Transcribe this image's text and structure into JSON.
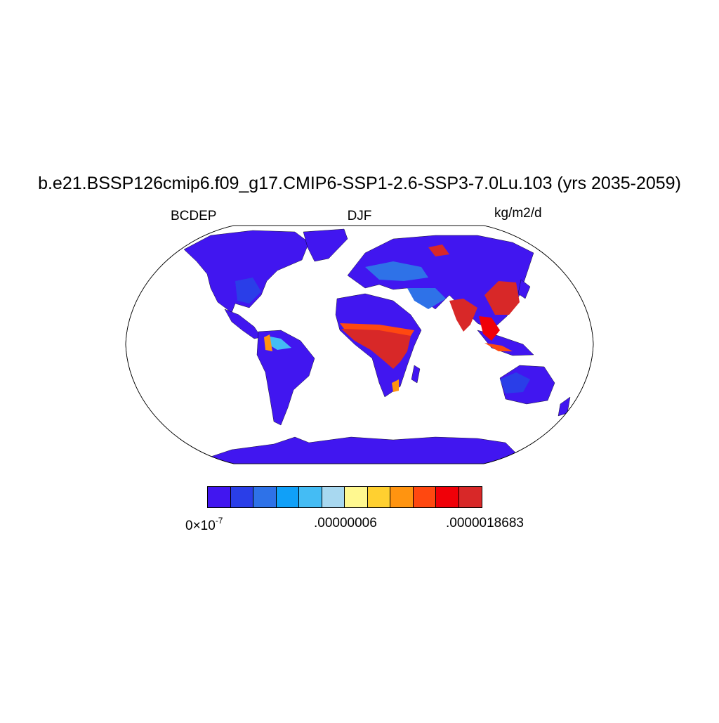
{
  "header": {
    "title": "b.e21.BSSP126cmip6.f09_g17.CMIP6-SSP1-2.6-SSP3-7.0Lu.103 (yrs 2035-2059)",
    "left_label": "BCDEP",
    "center_label": "DJF",
    "right_label": "kg/m2/d"
  },
  "map": {
    "projection": "robinson",
    "ocean_color": "#ffffff",
    "land_base_color": "#4116f0",
    "coastline_color": "#000000"
  },
  "colorbar": {
    "colors": [
      "#4116f0",
      "#2a3ee8",
      "#2e72e8",
      "#10a0f8",
      "#44bcf4",
      "#a8d8f0",
      "#fff890",
      "#ffd030",
      "#ff9410",
      "#ff4810",
      "#f00008",
      "#d82828"
    ],
    "tick_labels": {
      "low_mantissa": "0",
      "low_times": "×10",
      "low_exponent": "-7",
      "mid": ".00000006",
      "high": ".0000018683"
    }
  }
}
